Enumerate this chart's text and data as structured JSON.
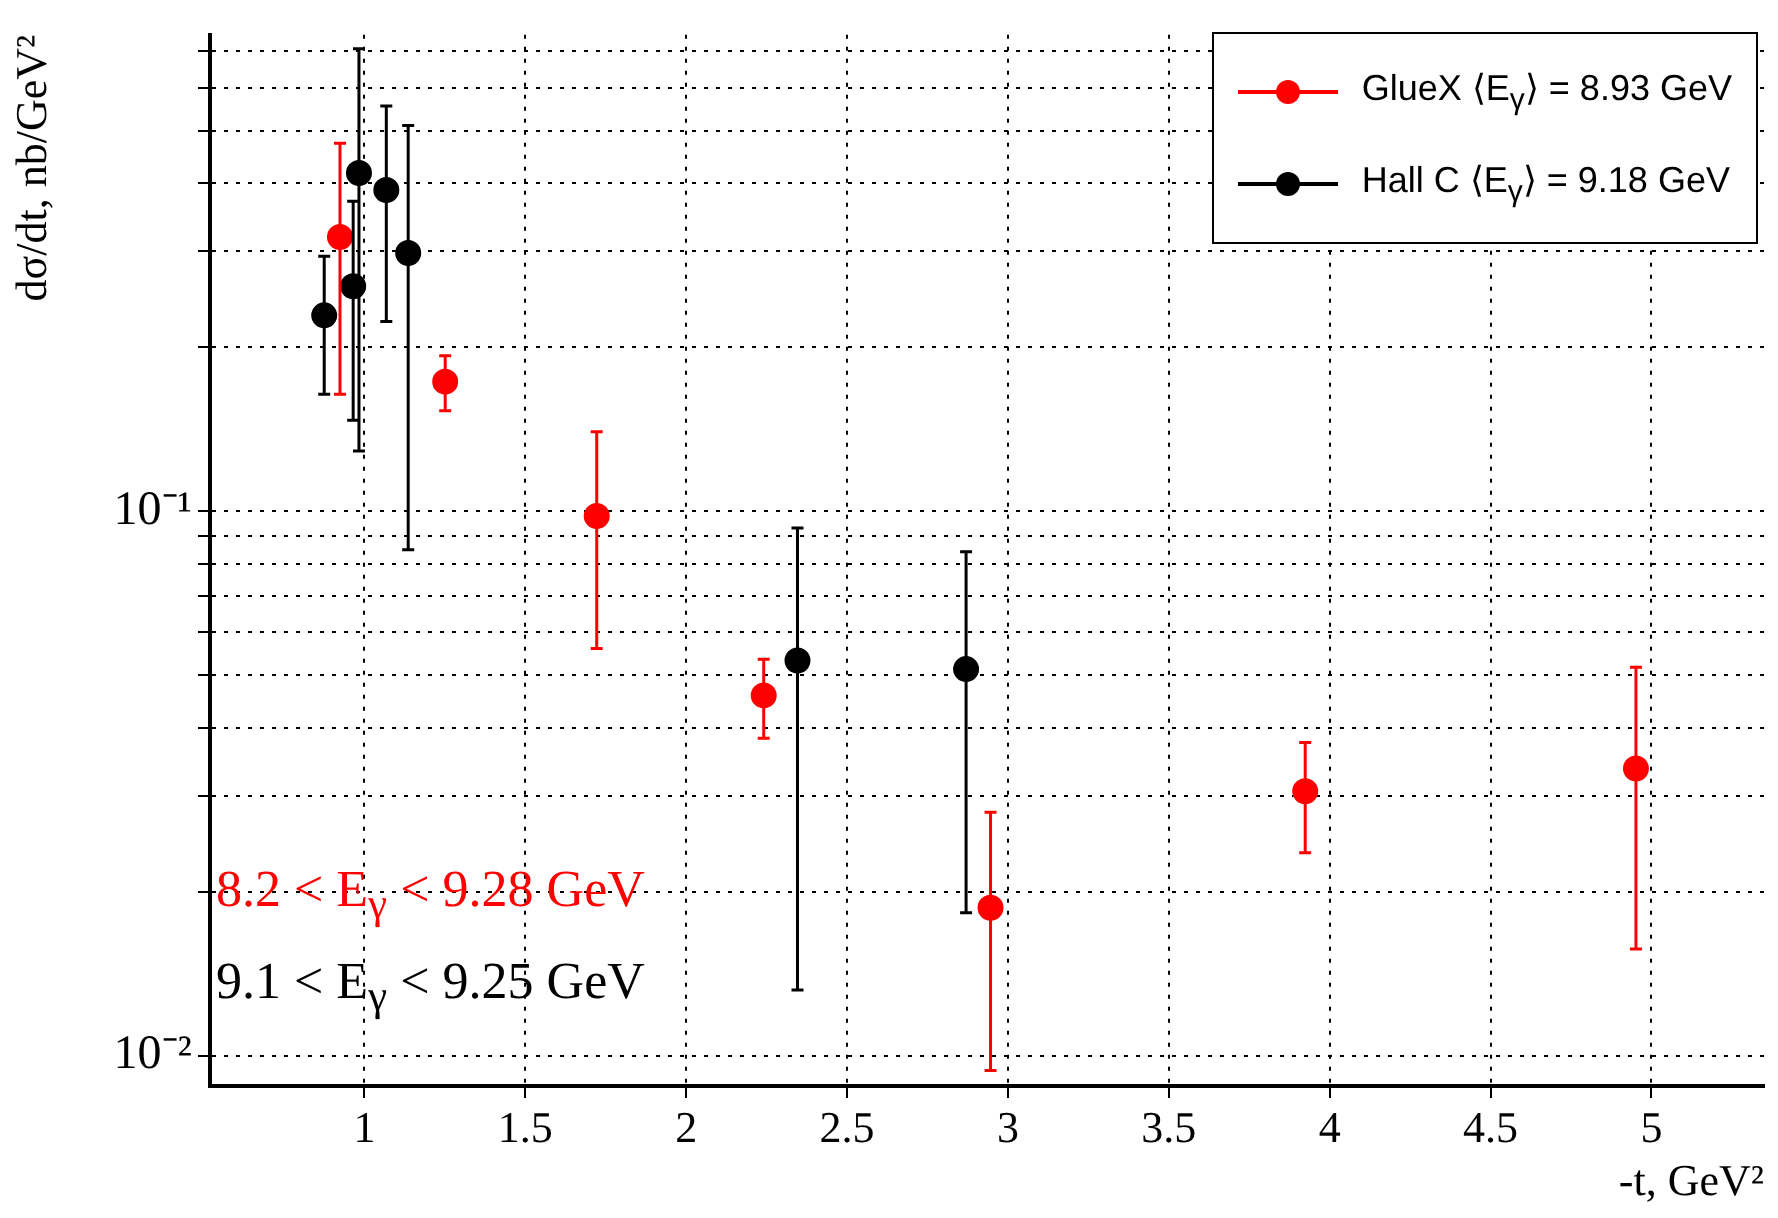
{
  "chart_data": {
    "type": "scatter",
    "xlabel": "-t, GeV²",
    "ylabel": "dσ/dt, nb/GeV²",
    "log": "y",
    "grid": true,
    "legend": "top right",
    "marker": "circle",
    "xlim": [
      0.52,
      5.35
    ],
    "xticks": [
      1,
      1.5,
      2,
      2.5,
      3,
      3.5,
      4,
      4.5,
      5
    ],
    "ylim": [
      0.0088,
      0.75
    ],
    "yticks": [
      {
        "value": 0.01,
        "label": "10⁻²"
      },
      {
        "value": 0.02,
        "label": null
      },
      {
        "value": 0.03,
        "label": null
      },
      {
        "value": 0.04,
        "label": null
      },
      {
        "value": 0.05,
        "label": null
      },
      {
        "value": 0.06,
        "label": null
      },
      {
        "value": 0.07,
        "label": null
      },
      {
        "value": 0.08,
        "label": null
      },
      {
        "value": 0.09,
        "label": null
      },
      {
        "value": 0.1,
        "label": "10⁻¹"
      },
      {
        "value": 0.2,
        "label": null
      },
      {
        "value": 0.3,
        "label": null
      },
      {
        "value": 0.4,
        "label": null
      },
      {
        "value": 0.5,
        "label": null
      },
      {
        "value": 0.6,
        "label": null
      },
      {
        "value": 0.7,
        "label": null
      }
    ],
    "series": [
      {
        "name": "GlueX ⟨E$_{γ}$⟩ = 8.93 GeV",
        "color": "#ff0000",
        "x": [
          0.924,
          1.251,
          1.722,
          2.241,
          2.946,
          3.924,
          4.952
        ],
        "values": [
          0.319,
          0.173,
          0.098,
          0.0459,
          0.0187,
          0.0306,
          0.0337
        ],
        "errors": [
          0.155,
          0.02,
          0.042,
          0.0076,
          0.0093,
          0.007,
          0.018
        ]
      },
      {
        "name": "Hall C ⟨E$_{γ}$⟩ = 9.18 GeV",
        "color": "#000000",
        "x": [
          0.875,
          0.965,
          0.983,
          1.068,
          1.136,
          2.346,
          2.87
        ],
        "values": [
          0.229,
          0.259,
          0.418,
          0.389,
          0.298,
          0.0532,
          0.0513
        ],
        "errors": [
          0.065,
          0.112,
          0.289,
          0.166,
          0.213,
          0.04,
          0.033
        ]
      }
    ],
    "annotations": [
      "8.2 < E$_{γ}$ < 9.28 GeV",
      "9.1 < E$_{γ}$ < 9.25 GeV"
    ]
  }
}
